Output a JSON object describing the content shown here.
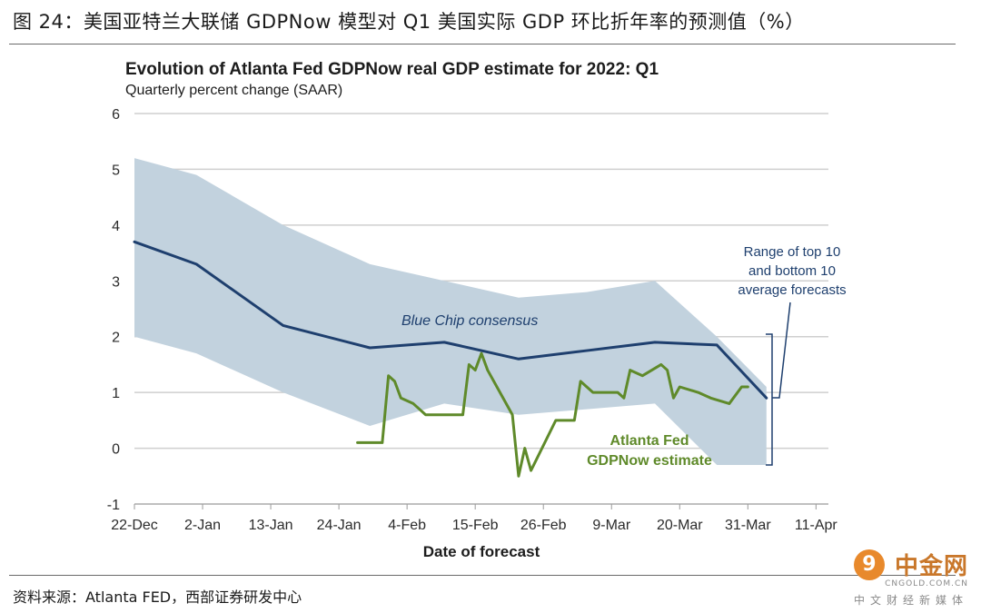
{
  "figure_caption": "图 24：美国亚特兰大联储 GDPNow 模型对 Q1 美国实际 GDP 环比折年率的预测值（%）",
  "source_note": "资料来源：Atlanta FED，西部证券研发中心",
  "watermark": {
    "logo": "9",
    "name": "中金网",
    "url": "CNGOLD.COM.CN",
    "tagline": "中文财经新媒体"
  },
  "colors": {
    "band": "#c2d2de",
    "consensus": "#1e3f6e",
    "gdpnow": "#5f8a2a",
    "grid": "#cfcfcf"
  },
  "chart_data": {
    "type": "line",
    "title": "Evolution of Atlanta Fed GDPNow real GDP estimate for 2022: Q1",
    "subtitle": "Quarterly percent change (SAAR)",
    "xlabel": "Date of forecast",
    "ylabel": "",
    "ylim": [
      -1,
      6
    ],
    "yticks": [
      -1,
      0,
      1,
      2,
      3,
      4,
      5,
      6
    ],
    "xlim": [
      0,
      112
    ],
    "x_tick_days": [
      0,
      11,
      22,
      33,
      44,
      55,
      66,
      77,
      88,
      99,
      110
    ],
    "x_tick_labels": [
      "22-Dec",
      "2-Jan",
      "13-Jan",
      "24-Jan",
      "4-Feb",
      "15-Feb",
      "26-Feb",
      "9-Mar",
      "20-Mar",
      "31-Mar",
      "11-Apr"
    ],
    "grid": true,
    "series": [
      {
        "name": "Blue Chip consensus",
        "x": [
          0,
          10,
          24,
          38,
          50,
          62,
          73,
          84,
          94,
          102
        ],
        "values": [
          3.7,
          3.3,
          2.2,
          1.8,
          1.9,
          1.6,
          1.75,
          1.9,
          1.85,
          0.9
        ]
      },
      {
        "name": "Atlanta Fed GDPNow estimate",
        "x": [
          36,
          40,
          41,
          42,
          43,
          45,
          46,
          47,
          53,
          54,
          55,
          56,
          57,
          61,
          62,
          63,
          64,
          68,
          69,
          70,
          71,
          72,
          74,
          76,
          77,
          78,
          79,
          80,
          82,
          85,
          86,
          87,
          88,
          91,
          93,
          96,
          98,
          99
        ],
        "values": [
          0.1,
          0.1,
          1.3,
          1.2,
          0.9,
          0.8,
          0.7,
          0.6,
          0.6,
          1.5,
          1.4,
          1.7,
          1.4,
          0.6,
          -0.5,
          0,
          -0.4,
          0.5,
          0.5,
          0.5,
          0.5,
          1.2,
          1.0,
          1.0,
          1.0,
          1.0,
          0.9,
          1.4,
          1.3,
          1.5,
          1.4,
          0.9,
          1.1,
          1.0,
          0.9,
          0.8,
          1.1,
          1.1
        ]
      }
    ],
    "band": {
      "name": "Range of top 10 and bottom 10 average forecasts",
      "x": [
        0,
        10,
        24,
        38,
        50,
        62,
        73,
        84,
        94,
        102
      ],
      "upper": [
        5.2,
        4.9,
        4.0,
        3.3,
        3.0,
        2.7,
        2.8,
        3.0,
        2.0,
        1.1
      ],
      "lower": [
        2.0,
        1.7,
        1.0,
        0.4,
        0.8,
        0.6,
        0.7,
        0.8,
        -0.3,
        -0.3
      ]
    },
    "annotations": {
      "consensus_label": "Blue Chip consensus",
      "gdpnow_label_line1": "Atlanta Fed",
      "gdpnow_label_line2": "GDPNow estimate",
      "range_label_line1": "Range of top 10",
      "range_label_line2": "and bottom 10",
      "range_label_line3": "average forecasts"
    }
  }
}
